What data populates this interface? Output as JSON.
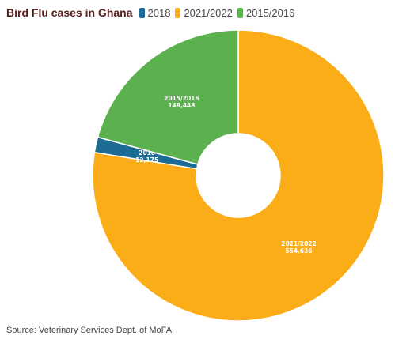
{
  "chart_data": {
    "type": "pie",
    "variant": "donut",
    "title": "Bird Flu cases in Ghana",
    "legend_position": "top",
    "categories": [
      "2018",
      "2021/2022",
      "2015/2016"
    ],
    "values": [
      12175,
      554636,
      148448
    ],
    "value_labels": [
      "12,175",
      "554,636",
      "148,448"
    ],
    "colors": [
      "#1c6b94",
      "#fbad18",
      "#5cb14f"
    ]
  },
  "source": "Source: Veterinary Services Dept. of MoFA"
}
